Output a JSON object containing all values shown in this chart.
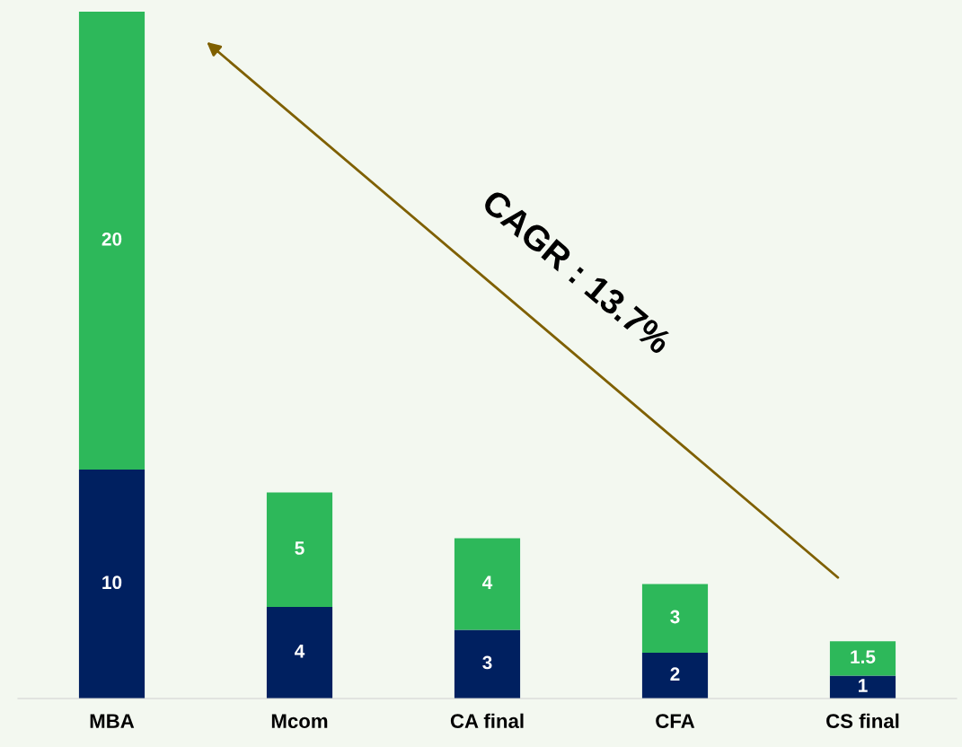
{
  "chart_data": {
    "type": "bar",
    "stacked": true,
    "data_labels": true,
    "legend": false,
    "grid": false,
    "tick_labels": "x",
    "categories": [
      "MBA",
      "Mcom",
      "CA final",
      "CFA",
      "CS final"
    ],
    "series": [
      {
        "color": "#002060",
        "values": [
          10,
          4,
          3,
          2,
          1
        ]
      },
      {
        "color": "#2db85a",
        "values": [
          20,
          5,
          4,
          3,
          1.5
        ]
      }
    ],
    "annotations": [
      "CAGR : 13.7%"
    ]
  }
}
